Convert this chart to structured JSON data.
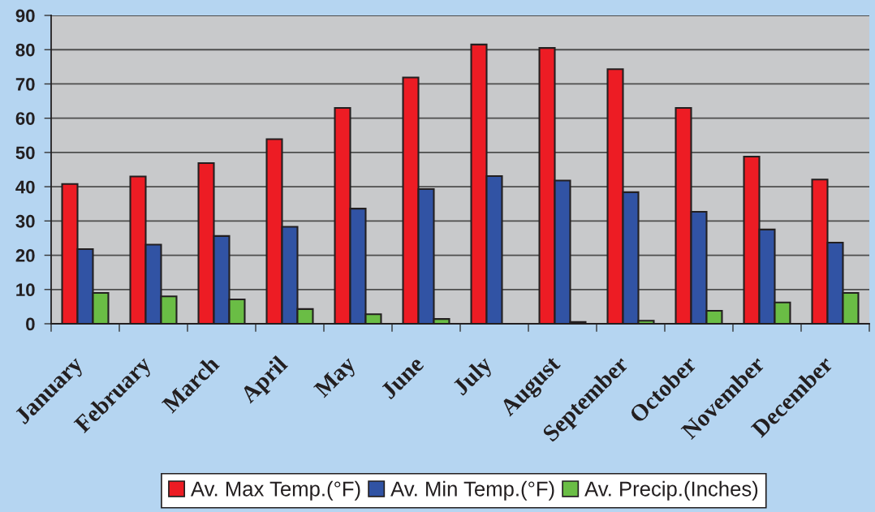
{
  "chart_data": {
    "type": "bar",
    "categories": [
      "January",
      "February",
      "March",
      "April",
      "May",
      "June",
      "July",
      "August",
      "September",
      "October",
      "November",
      "December"
    ],
    "series": [
      {
        "name": "Av. Max Temp.(°F)",
        "color": "#ed1c24",
        "values": [
          40.8,
          43.0,
          46.9,
          53.9,
          63.0,
          71.9,
          81.5,
          80.5,
          74.3,
          63.0,
          48.8,
          42.1
        ]
      },
      {
        "name": "Av. Min Temp.(°F)",
        "color": "#3153a4",
        "values": [
          21.8,
          23.1,
          25.6,
          28.3,
          33.6,
          39.3,
          43.1,
          41.8,
          38.4,
          32.7,
          27.5,
          23.7
        ]
      },
      {
        "name": "Av. Precip.(Inches)",
        "color": "#6abd45",
        "values": [
          9.0,
          8.0,
          7.1,
          4.3,
          2.8,
          1.4,
          null,
          0.5,
          0.9,
          3.8,
          6.2,
          9.0
        ]
      }
    ],
    "ylim": [
      0,
      90
    ],
    "yticks": [
      0,
      10,
      20,
      30,
      40,
      50,
      60,
      70,
      80,
      90
    ],
    "grid": "y",
    "legend": "bottom"
  }
}
